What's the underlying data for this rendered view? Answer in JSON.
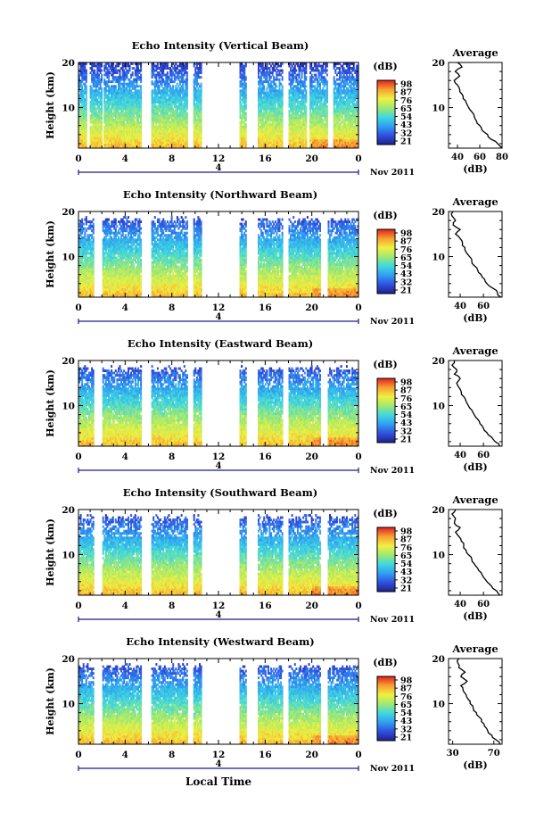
{
  "figure": {
    "xlabel": "Local Time",
    "date_label": "Nov 2011",
    "day_label": "4"
  },
  "colorbar": {
    "unit": "(dB)",
    "ticks": [
      "98",
      "87",
      "76",
      "65",
      "54",
      "43",
      "32",
      "21"
    ],
    "stops": [
      "#20208c",
      "#3050e0",
      "#30a0f0",
      "#40d8e0",
      "#a0e870",
      "#f0f040",
      "#f8a030",
      "#e02020"
    ]
  },
  "chart_data": [
    {
      "type": "heatmap",
      "title": "Echo Intensity (Vertical Beam)",
      "xlabel": "",
      "ylabel": "Height (km)",
      "x_ticks": [
        "0",
        "4",
        "8",
        "12",
        "16",
        "20",
        "0"
      ],
      "y_ticks": [
        "20",
        "10"
      ],
      "xlim": [
        0,
        24
      ],
      "ylim": [
        1,
        20
      ],
      "data_gaps_hours": [
        [
          0.7,
          1.0
        ],
        [
          2.0,
          2.2
        ],
        [
          5.4,
          6.2
        ],
        [
          9.4,
          9.8
        ],
        [
          10.6,
          13.8
        ],
        [
          14.4,
          15.4
        ],
        [
          17.5,
          18.0
        ],
        [
          19.5,
          19.8
        ],
        [
          21.3,
          21.8
        ]
      ],
      "profile": {
        "title": "Average",
        "xlabel": "(dB)",
        "x_ticks": [
          "40",
          "60",
          "80"
        ],
        "y_ticks": [
          "20",
          "10"
        ],
        "xlim": [
          32,
          80
        ],
        "height_km": [
          1,
          2,
          3,
          4,
          5,
          6,
          7,
          8,
          9,
          10,
          11,
          12,
          13,
          14,
          15,
          16,
          17,
          18,
          19,
          20
        ],
        "db": [
          80,
          76,
          70,
          67,
          62,
          60,
          57,
          55,
          53,
          50,
          48,
          45,
          44,
          42,
          40,
          37,
          42,
          38,
          44,
          40
        ]
      }
    },
    {
      "type": "heatmap",
      "title": "Echo Intensity (Northward Beam)",
      "xlabel": "",
      "ylabel": "Height (km)",
      "x_ticks": [
        "0",
        "4",
        "8",
        "12",
        "16",
        "20",
        "0"
      ],
      "y_ticks": [
        "20",
        "10"
      ],
      "xlim": [
        0,
        24
      ],
      "ylim": [
        1,
        20
      ],
      "data_gaps_hours": [
        [
          1.3,
          2.1
        ],
        [
          5.4,
          6.2
        ],
        [
          9.4,
          9.8
        ],
        [
          10.6,
          13.8
        ],
        [
          14.4,
          15.4
        ],
        [
          17.5,
          18.0
        ],
        [
          20.8,
          21.3
        ]
      ],
      "profile": {
        "title": "Average",
        "xlabel": "(dB)",
        "x_ticks": [
          "40",
          "60"
        ],
        "y_ticks": [
          "20",
          "10"
        ],
        "xlim": [
          30,
          76
        ],
        "height_km": [
          1,
          2,
          3,
          4,
          5,
          6,
          7,
          8,
          9,
          10,
          11,
          12,
          13,
          14,
          15,
          16,
          17,
          18,
          19,
          20
        ],
        "db": [
          75,
          72,
          68,
          63,
          61,
          58,
          55,
          52,
          50,
          48,
          45,
          44,
          42,
          40,
          36,
          40,
          34,
          36,
          33,
          34
        ]
      }
    },
    {
      "type": "heatmap",
      "title": "Echo Intensity (Eastward Beam)",
      "xlabel": "",
      "ylabel": "Height (km)",
      "x_ticks": [
        "0",
        "4",
        "8",
        "12",
        "16",
        "20",
        "0"
      ],
      "y_ticks": [
        "20",
        "10"
      ],
      "xlim": [
        0,
        24
      ],
      "ylim": [
        1,
        20
      ],
      "data_gaps_hours": [
        [
          1.3,
          2.1
        ],
        [
          5.4,
          6.2
        ],
        [
          9.4,
          9.8
        ],
        [
          10.6,
          13.8
        ],
        [
          14.4,
          15.4
        ],
        [
          17.5,
          18.0
        ],
        [
          20.8,
          21.3
        ]
      ],
      "profile": {
        "title": "Average",
        "xlabel": "(dB)",
        "x_ticks": [
          "40",
          "60"
        ],
        "y_ticks": [
          "20",
          "10"
        ],
        "xlim": [
          30,
          76
        ],
        "height_km": [
          1,
          2,
          3,
          4,
          5,
          6,
          7,
          8,
          9,
          10,
          11,
          12,
          13,
          14,
          15,
          16,
          17,
          18,
          19,
          20
        ],
        "db": [
          74,
          70,
          67,
          63,
          60,
          57,
          55,
          52,
          50,
          47,
          45,
          43,
          41,
          39,
          37,
          40,
          35,
          37,
          33,
          35
        ]
      }
    },
    {
      "type": "heatmap",
      "title": "Echo Intensity (Southward Beam)",
      "xlabel": "",
      "ylabel": "Height (km)",
      "x_ticks": [
        "0",
        "4",
        "8",
        "12",
        "16",
        "20",
        "0"
      ],
      "y_ticks": [
        "20",
        "10"
      ],
      "xlim": [
        0,
        24
      ],
      "ylim": [
        1,
        20
      ],
      "data_gaps_hours": [
        [
          1.3,
          2.1
        ],
        [
          5.4,
          6.2
        ],
        [
          9.4,
          9.8
        ],
        [
          10.6,
          13.8
        ],
        [
          14.4,
          15.4
        ],
        [
          17.5,
          18.0
        ],
        [
          20.8,
          21.3
        ]
      ],
      "profile": {
        "title": "Average",
        "xlabel": "(dB)",
        "x_ticks": [
          "40",
          "60"
        ],
        "y_ticks": [
          "20",
          "10"
        ],
        "xlim": [
          30,
          76
        ],
        "height_km": [
          1,
          2,
          3,
          4,
          5,
          6,
          7,
          8,
          9,
          10,
          11,
          12,
          13,
          14,
          15,
          16,
          17,
          18,
          19,
          20
        ],
        "db": [
          74,
          71,
          67,
          63,
          60,
          58,
          55,
          52,
          50,
          47,
          45,
          43,
          41,
          39,
          36,
          40,
          35,
          36,
          33,
          36
        ]
      }
    },
    {
      "type": "heatmap",
      "title": "Echo Intensity (Westward Beam)",
      "xlabel": "Local Time",
      "ylabel": "Height (km)",
      "x_ticks": [
        "0",
        "4",
        "8",
        "12",
        "16",
        "20",
        "0"
      ],
      "y_ticks": [
        "20",
        "10"
      ],
      "xlim": [
        0,
        24
      ],
      "ylim": [
        1,
        20
      ],
      "data_gaps_hours": [
        [
          1.3,
          2.1
        ],
        [
          5.4,
          6.2
        ],
        [
          9.4,
          9.8
        ],
        [
          10.6,
          13.8
        ],
        [
          14.4,
          15.4
        ],
        [
          17.5,
          18.0
        ],
        [
          20.8,
          21.3
        ]
      ],
      "profile": {
        "title": "Average",
        "xlabel": "(dB)",
        "x_ticks": [
          "30",
          "70"
        ],
        "y_ticks": [
          "20",
          "10"
        ],
        "xlim": [
          26,
          78
        ],
        "height_km": [
          1,
          2,
          3,
          4,
          5,
          6,
          7,
          8,
          9,
          10,
          11,
          12,
          13,
          14,
          15,
          16,
          17,
          18,
          19,
          20
        ],
        "db": [
          76,
          72,
          68,
          64,
          61,
          58,
          56,
          53,
          50,
          47,
          45,
          43,
          40,
          38,
          44,
          38,
          42,
          36,
          35,
          36
        ]
      }
    }
  ]
}
